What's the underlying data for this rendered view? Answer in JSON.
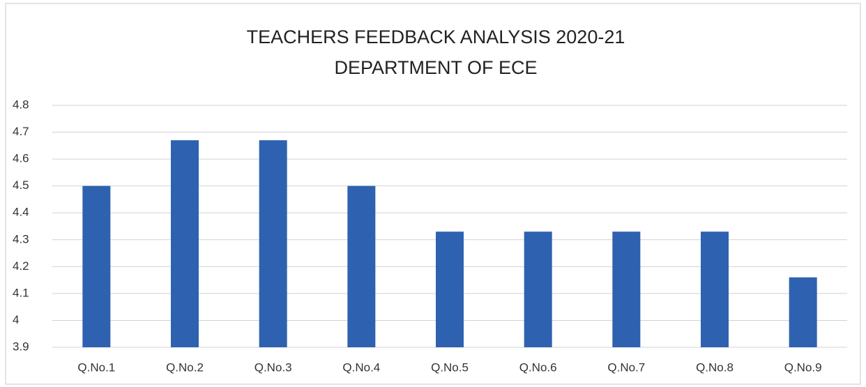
{
  "chart_data": {
    "type": "bar",
    "title": "TEACHERS FEEDBACK ANALYSIS 2020-21",
    "subtitle": "DEPARTMENT OF ECE",
    "categories": [
      "Q.No.1",
      "Q.No.2",
      "Q.No.3",
      "Q.No.4",
      "Q.No.5",
      "Q.No.6",
      "Q.No.7",
      "Q.No.8",
      "Q.No.9"
    ],
    "values": [
      4.5,
      4.67,
      4.67,
      4.5,
      4.33,
      4.33,
      4.33,
      4.33,
      4.16
    ],
    "color": "#2e62b0",
    "ylim": [
      3.9,
      4.8
    ],
    "yticks": [
      3.9,
      4,
      4.1,
      4.2,
      4.3,
      4.4,
      4.5,
      4.6,
      4.7,
      4.8
    ],
    "grid": true
  }
}
